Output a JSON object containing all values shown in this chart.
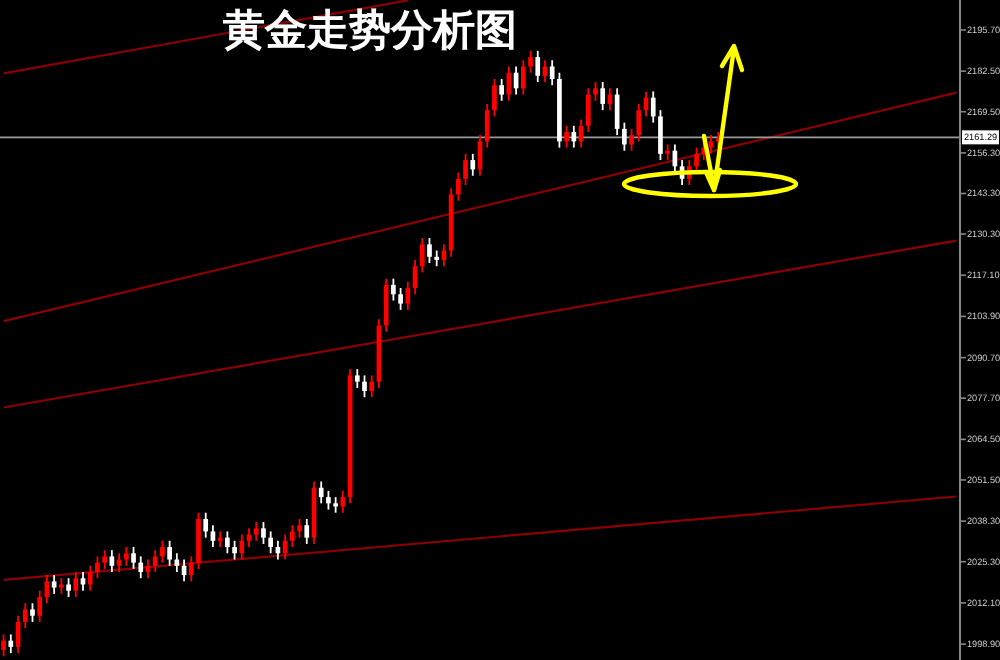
{
  "chart_data": {
    "type": "candlestick",
    "title": "黄金走势分析图",
    "categories": [
      null,
      null,
      null,
      null,
      null,
      null,
      null,
      null,
      null,
      null,
      null,
      null,
      null,
      null,
      null,
      null,
      null,
      null,
      null,
      null,
      null,
      null,
      null,
      null,
      null,
      null,
      null,
      null,
      null,
      null,
      null,
      null,
      null,
      null,
      null,
      null,
      null,
      null,
      null,
      null,
      null,
      null,
      null,
      null,
      null,
      null,
      null,
      null,
      null,
      null,
      null,
      null,
      null,
      null,
      null,
      null,
      null,
      null,
      null,
      null,
      null,
      null,
      null,
      null,
      null,
      null,
      null,
      null,
      null,
      null,
      null,
      null,
      null,
      null,
      null,
      null,
      null,
      null,
      null,
      null,
      null,
      null,
      null,
      null,
      null,
      null,
      null,
      null,
      null,
      null,
      null,
      null,
      null,
      null,
      null,
      null,
      null,
      null,
      null,
      null,
      null,
      null,
      null,
      null,
      null,
      null,
      null,
      null,
      null,
      null,
      null,
      null,
      null,
      null,
      null,
      null,
      null,
      null,
      null,
      null,
      null,
      null,
      null,
      null,
      null,
      null,
      null,
      null,
      null,
      null,
      null,
      null,
      null
    ],
    "ylim": [
      1993.8,
      2205.3
    ],
    "yticks": [
      {
        "value": 2195.7,
        "label": "2195.70"
      },
      {
        "value": 2182.5,
        "label": "2182.50"
      },
      {
        "value": 2169.5,
        "label": "2169.50"
      },
      {
        "value": 2156.3,
        "label": "2156.30"
      },
      {
        "value": 2143.3,
        "label": "2143.30"
      },
      {
        "value": 2130.3,
        "label": "2130.30"
      },
      {
        "value": 2117.1,
        "label": "2117.10"
      },
      {
        "value": 2103.9,
        "label": "2103.90"
      },
      {
        "value": 2090.7,
        "label": "2090.70"
      },
      {
        "value": 2077.7,
        "label": "2077.70"
      },
      {
        "value": 2064.5,
        "label": "2064.50"
      },
      {
        "value": 2051.5,
        "label": "2051.50"
      },
      {
        "value": 2038.3,
        "label": "2038.30"
      },
      {
        "value": 2025.3,
        "label": "2025.30"
      },
      {
        "value": 2012.1,
        "label": "2012.10"
      },
      {
        "value": 1998.9,
        "label": "1998.90"
      }
    ],
    "tick_labels": "y",
    "grid": false,
    "ohlc": [
      [
        1997,
        2002,
        1995,
        2000
      ],
      [
        2000,
        2002,
        1996,
        1998
      ],
      [
        1998,
        2008,
        1996,
        2006
      ],
      [
        2006,
        2012,
        2004,
        2010
      ],
      [
        2010,
        2012,
        2006,
        2008
      ],
      [
        2008,
        2016,
        2006,
        2014
      ],
      [
        2014,
        2021,
        2012,
        2019
      ],
      [
        2019,
        2021,
        2015,
        2017
      ],
      [
        2017,
        2020,
        2015,
        2018
      ],
      [
        2018,
        2020,
        2014,
        2016
      ],
      [
        2016,
        2022,
        2014,
        2020
      ],
      [
        2020,
        2022,
        2016,
        2018
      ],
      [
        2018,
        2024,
        2016,
        2022
      ],
      [
        2022,
        2027,
        2020,
        2025
      ],
      [
        2025,
        2029,
        2023,
        2027
      ],
      [
        2027,
        2029,
        2022,
        2024
      ],
      [
        2024,
        2028,
        2022,
        2026
      ],
      [
        2026,
        2030,
        2024,
        2028
      ],
      [
        2028,
        2030,
        2023,
        2025
      ],
      [
        2025,
        2027,
        2020,
        2022
      ],
      [
        2022,
        2026,
        2020,
        2024
      ],
      [
        2024,
        2029,
        2022,
        2027
      ],
      [
        2027,
        2032,
        2025,
        2030
      ],
      [
        2030,
        2032,
        2024,
        2026
      ],
      [
        2026,
        2028,
        2022,
        2024
      ],
      [
        2024,
        2026,
        2019,
        2021
      ],
      [
        2021,
        2027,
        2019,
        2025
      ],
      [
        2025,
        2041,
        2023,
        2039
      ],
      [
        2039,
        2041,
        2033,
        2035
      ],
      [
        2035,
        2037,
        2030,
        2032
      ],
      [
        2032,
        2035,
        2030,
        2033
      ],
      [
        2033,
        2035,
        2028,
        2030
      ],
      [
        2030,
        2032,
        2026,
        2028
      ],
      [
        2028,
        2034,
        2026,
        2032
      ],
      [
        2032,
        2036,
        2030,
        2034
      ],
      [
        2034,
        2038,
        2032,
        2036
      ],
      [
        2036,
        2038,
        2031,
        2033
      ],
      [
        2033,
        2035,
        2028,
        2030
      ],
      [
        2030,
        2032,
        2026,
        2028
      ],
      [
        2028,
        2034,
        2026,
        2032
      ],
      [
        2032,
        2037,
        2030,
        2035
      ],
      [
        2035,
        2039,
        2033,
        2037
      ],
      [
        2037,
        2039,
        2031,
        2033
      ],
      [
        2033,
        2051,
        2031,
        2049
      ],
      [
        2049,
        2051,
        2044,
        2046
      ],
      [
        2046,
        2048,
        2042,
        2044
      ],
      [
        2044,
        2046,
        2041,
        2043
      ],
      [
        2043,
        2048,
        2041,
        2046
      ],
      [
        2046,
        2087,
        2044,
        2085
      ],
      [
        2085,
        2087,
        2081,
        2083
      ],
      [
        2083,
        2085,
        2078,
        2080
      ],
      [
        2080,
        2085,
        2078,
        2083
      ],
      [
        2083,
        2103,
        2081,
        2101
      ],
      [
        2101,
        2116,
        2099,
        2114
      ],
      [
        2114,
        2116,
        2109,
        2111
      ],
      [
        2111,
        2113,
        2106,
        2108
      ],
      [
        2108,
        2115,
        2106,
        2113
      ],
      [
        2113,
        2122,
        2111,
        2120
      ],
      [
        2120,
        2129,
        2118,
        2127
      ],
      [
        2127,
        2129,
        2121,
        2123
      ],
      [
        2123,
        2125,
        2120,
        2122
      ],
      [
        2122,
        2127,
        2120,
        2125
      ],
      [
        2125,
        2145,
        2123,
        2143
      ],
      [
        2143,
        2150,
        2141,
        2148
      ],
      [
        2148,
        2156,
        2146,
        2154
      ],
      [
        2154,
        2156,
        2149,
        2151
      ],
      [
        2151,
        2162,
        2149,
        2160
      ],
      [
        2160,
        2172,
        2158,
        2170
      ],
      [
        2170,
        2180,
        2168,
        2178
      ],
      [
        2178,
        2180,
        2173,
        2175
      ],
      [
        2175,
        2184,
        2173,
        2182
      ],
      [
        2182,
        2184,
        2175,
        2177
      ],
      [
        2177,
        2186,
        2175,
        2184
      ],
      [
        2184,
        2189,
        2182,
        2187
      ],
      [
        2187,
        2189,
        2179,
        2181
      ],
      [
        2181,
        2186,
        2179,
        2184
      ],
      [
        2184,
        2186,
        2178,
        2180
      ],
      [
        2180,
        2182,
        2158,
        2160
      ],
      [
        2160,
        2165,
        2158,
        2163
      ],
      [
        2163,
        2165,
        2158,
        2160
      ],
      [
        2160,
        2167,
        2158,
        2165
      ],
      [
        2165,
        2177,
        2163,
        2175
      ],
      [
        2175,
        2179,
        2173,
        2177
      ],
      [
        2177,
        2179,
        2170,
        2172
      ],
      [
        2172,
        2177,
        2170,
        2175
      ],
      [
        2175,
        2177,
        2162,
        2164
      ],
      [
        2164,
        2166,
        2157,
        2159
      ],
      [
        2159,
        2164,
        2157,
        2162
      ],
      [
        2162,
        2172,
        2160,
        2170
      ],
      [
        2170,
        2176,
        2168,
        2174
      ],
      [
        2174,
        2176,
        2166,
        2168
      ],
      [
        2168,
        2170,
        2154,
        2156
      ],
      [
        2156,
        2159,
        2154,
        2157
      ],
      [
        2157,
        2159,
        2150,
        2152
      ],
      [
        2152,
        2154,
        2146,
        2148
      ],
      [
        2148,
        2154,
        2146,
        2152
      ],
      [
        2152,
        2158,
        2150,
        2156
      ],
      [
        2156,
        2160,
        2154,
        2158
      ],
      [
        2158,
        2162,
        2156,
        2160
      ],
      [
        2160,
        2163,
        2158,
        2161
      ],
      null,
      null,
      null,
      null,
      null,
      null,
      null,
      null,
      null,
      null,
      null,
      null,
      null,
      null,
      null,
      null,
      null,
      null,
      null,
      null,
      null,
      null,
      null,
      null,
      null,
      null,
      null,
      null,
      null,
      null,
      null,
      null,
      null
    ],
    "colors": [
      "#ff0000",
      "#ffffff",
      "#ff0000",
      "#ff0000",
      "#ffffff",
      "#ff0000",
      "#ff0000",
      "#ffffff",
      "#ff0000",
      "#ffffff",
      "#ff0000",
      "#ffffff",
      "#ff0000",
      "#ff0000",
      "#ff0000",
      "#ffffff",
      "#ff0000",
      "#ff0000",
      "#ffffff",
      "#ffffff",
      "#ff0000",
      "#ff0000",
      "#ff0000",
      "#ffffff",
      "#ffffff",
      "#ffffff",
      "#ff0000",
      "#ff0000",
      "#ffffff",
      "#ffffff",
      "#ff0000",
      "#ffffff",
      "#ffffff",
      "#ff0000",
      "#ff0000",
      "#ff0000",
      "#ffffff",
      "#ffffff",
      "#ffffff",
      "#ff0000",
      "#ff0000",
      "#ff0000",
      "#ffffff",
      "#ff0000",
      "#ffffff",
      "#ffffff",
      "#ffffff",
      "#ff0000",
      "#ff0000",
      "#ffffff",
      "#ffffff",
      "#ff0000",
      "#ff0000",
      "#ff0000",
      "#ffffff",
      "#ffffff",
      "#ff0000",
      "#ff0000",
      "#ff0000",
      "#ffffff",
      "#ffffff",
      "#ff0000",
      "#ff0000",
      "#ff0000",
      "#ff0000",
      "#ffffff",
      "#ff0000",
      "#ff0000",
      "#ff0000",
      "#ffffff",
      "#ff0000",
      "#ffffff",
      "#ff0000",
      "#ff0000",
      "#ffffff",
      "#ff0000",
      "#ffffff",
      "#ffffff",
      "#ff0000",
      "#ffffff",
      "#ff0000",
      "#ff0000",
      "#ff0000",
      "#ffffff",
      "#ff0000",
      "#ffffff",
      "#ffffff",
      "#ff0000",
      "#ff0000",
      "#ff0000",
      "#ffffff",
      "#ffffff",
      "#ff0000",
      "#ffffff",
      "#ffffff",
      "#ff0000",
      "#ff0000",
      "#ff0000",
      "#ff0000",
      "#ff0000",
      null,
      null,
      null,
      null,
      null,
      null,
      null,
      null,
      null,
      null,
      null,
      null,
      null,
      null,
      null,
      null,
      null,
      null,
      null,
      null,
      null,
      null,
      null,
      null,
      null,
      null,
      null,
      null,
      null,
      null,
      null,
      null,
      null
    ],
    "series": [
      {
        "type": "line",
        "color": "#8b0000",
        "values": [
          2181.8,
          null,
          null,
          null,
          null,
          null,
          null,
          null,
          null,
          null,
          null,
          null,
          null,
          null,
          null,
          null,
          null,
          null,
          null,
          null,
          null,
          null,
          null,
          null,
          null,
          null,
          null,
          null,
          null,
          null,
          null,
          null,
          null,
          null,
          null,
          null,
          null,
          null,
          null,
          null,
          null,
          null,
          null,
          null,
          null,
          null,
          null,
          null,
          null,
          null,
          null,
          null,
          null,
          null,
          null,
          null,
          2205.2,
          null,
          null,
          null,
          null,
          null,
          null,
          null,
          null,
          null,
          null,
          null,
          null,
          null,
          null,
          null,
          null,
          null,
          null,
          null,
          null,
          null,
          null,
          null,
          null,
          null,
          null,
          null,
          null,
          null,
          null,
          null,
          null,
          null,
          null,
          null,
          null,
          null,
          null,
          null,
          null,
          null,
          null,
          null,
          null,
          null,
          null,
          null,
          null,
          null,
          null,
          null,
          null,
          null,
          null,
          null,
          null,
          null,
          null,
          null,
          null,
          null,
          null,
          null,
          null,
          null,
          null,
          null,
          null,
          null,
          null,
          null,
          null,
          null,
          null,
          null,
          null
        ]
      },
      {
        "type": "line",
        "color": "#8b0000",
        "values": [
          2102.4,
          null,
          null,
          null,
          null,
          null,
          null,
          null,
          null,
          null,
          null,
          null,
          null,
          null,
          null,
          null,
          null,
          null,
          null,
          null,
          null,
          null,
          null,
          null,
          null,
          null,
          null,
          null,
          null,
          null,
          null,
          null,
          null,
          null,
          null,
          null,
          null,
          null,
          null,
          null,
          null,
          null,
          null,
          null,
          null,
          null,
          null,
          null,
          null,
          null,
          null,
          null,
          null,
          null,
          null,
          null,
          null,
          null,
          null,
          null,
          null,
          null,
          null,
          null,
          null,
          null,
          null,
          null,
          null,
          null,
          null,
          null,
          null,
          null,
          null,
          null,
          null,
          null,
          null,
          null,
          null,
          null,
          null,
          null,
          null,
          null,
          null,
          null,
          null,
          null,
          null,
          null,
          null,
          null,
          null,
          null,
          null,
          null,
          null,
          null,
          null,
          null,
          null,
          null,
          null,
          null,
          null,
          null,
          null,
          null,
          null,
          null,
          null,
          null,
          null,
          null,
          null,
          null,
          null,
          null,
          null,
          null,
          null,
          null,
          null,
          null,
          null,
          null,
          null,
          null,
          null,
          null,
          2175.6
        ]
      },
      {
        "type": "line",
        "color": "#8b0000",
        "values": [
          2074.7,
          null,
          null,
          null,
          null,
          null,
          null,
          null,
          null,
          null,
          null,
          null,
          null,
          null,
          null,
          null,
          null,
          null,
          null,
          null,
          null,
          null,
          null,
          null,
          null,
          null,
          null,
          null,
          null,
          null,
          null,
          null,
          null,
          null,
          null,
          null,
          null,
          null,
          null,
          null,
          null,
          null,
          null,
          null,
          null,
          null,
          null,
          null,
          null,
          null,
          null,
          null,
          null,
          null,
          null,
          null,
          null,
          null,
          null,
          null,
          null,
          null,
          null,
          null,
          null,
          null,
          null,
          null,
          null,
          null,
          null,
          null,
          null,
          null,
          null,
          null,
          null,
          null,
          null,
          null,
          null,
          null,
          null,
          null,
          null,
          null,
          null,
          null,
          null,
          null,
          null,
          null,
          null,
          null,
          null,
          null,
          null,
          null,
          null,
          null,
          null,
          null,
          null,
          null,
          null,
          null,
          null,
          null,
          null,
          null,
          null,
          null,
          null,
          null,
          null,
          null,
          null,
          null,
          null,
          null,
          null,
          null,
          null,
          null,
          null,
          null,
          null,
          null,
          null,
          null,
          null,
          null,
          2128.2
        ]
      },
      {
        "type": "line",
        "color": "#8b0000",
        "values": [
          2019.5,
          null,
          null,
          null,
          null,
          null,
          null,
          null,
          null,
          null,
          null,
          null,
          null,
          null,
          null,
          null,
          null,
          null,
          null,
          null,
          null,
          null,
          null,
          null,
          null,
          null,
          null,
          null,
          null,
          null,
          null,
          null,
          null,
          null,
          null,
          null,
          null,
          null,
          null,
          null,
          null,
          null,
          null,
          null,
          null,
          null,
          null,
          null,
          null,
          null,
          null,
          null,
          null,
          null,
          null,
          null,
          null,
          null,
          null,
          null,
          null,
          null,
          null,
          null,
          null,
          null,
          null,
          null,
          null,
          null,
          null,
          null,
          null,
          null,
          null,
          null,
          null,
          null,
          null,
          null,
          null,
          null,
          null,
          null,
          null,
          null,
          null,
          null,
          null,
          null,
          null,
          null,
          null,
          null,
          null,
          null,
          null,
          null,
          null,
          null,
          null,
          null,
          null,
          null,
          null,
          null,
          null,
          null,
          null,
          null,
          null,
          null,
          null,
          null,
          null,
          null,
          null,
          null,
          null,
          null,
          null,
          null,
          null,
          null,
          null,
          null,
          null,
          null,
          null,
          null,
          null,
          null,
          2046.2
        ]
      }
    ],
    "ref_lines": [
      {
        "axis": "y",
        "value": 2161.29,
        "label": "2161.29",
        "color": "#9a9a9a"
      }
    ]
  }
}
